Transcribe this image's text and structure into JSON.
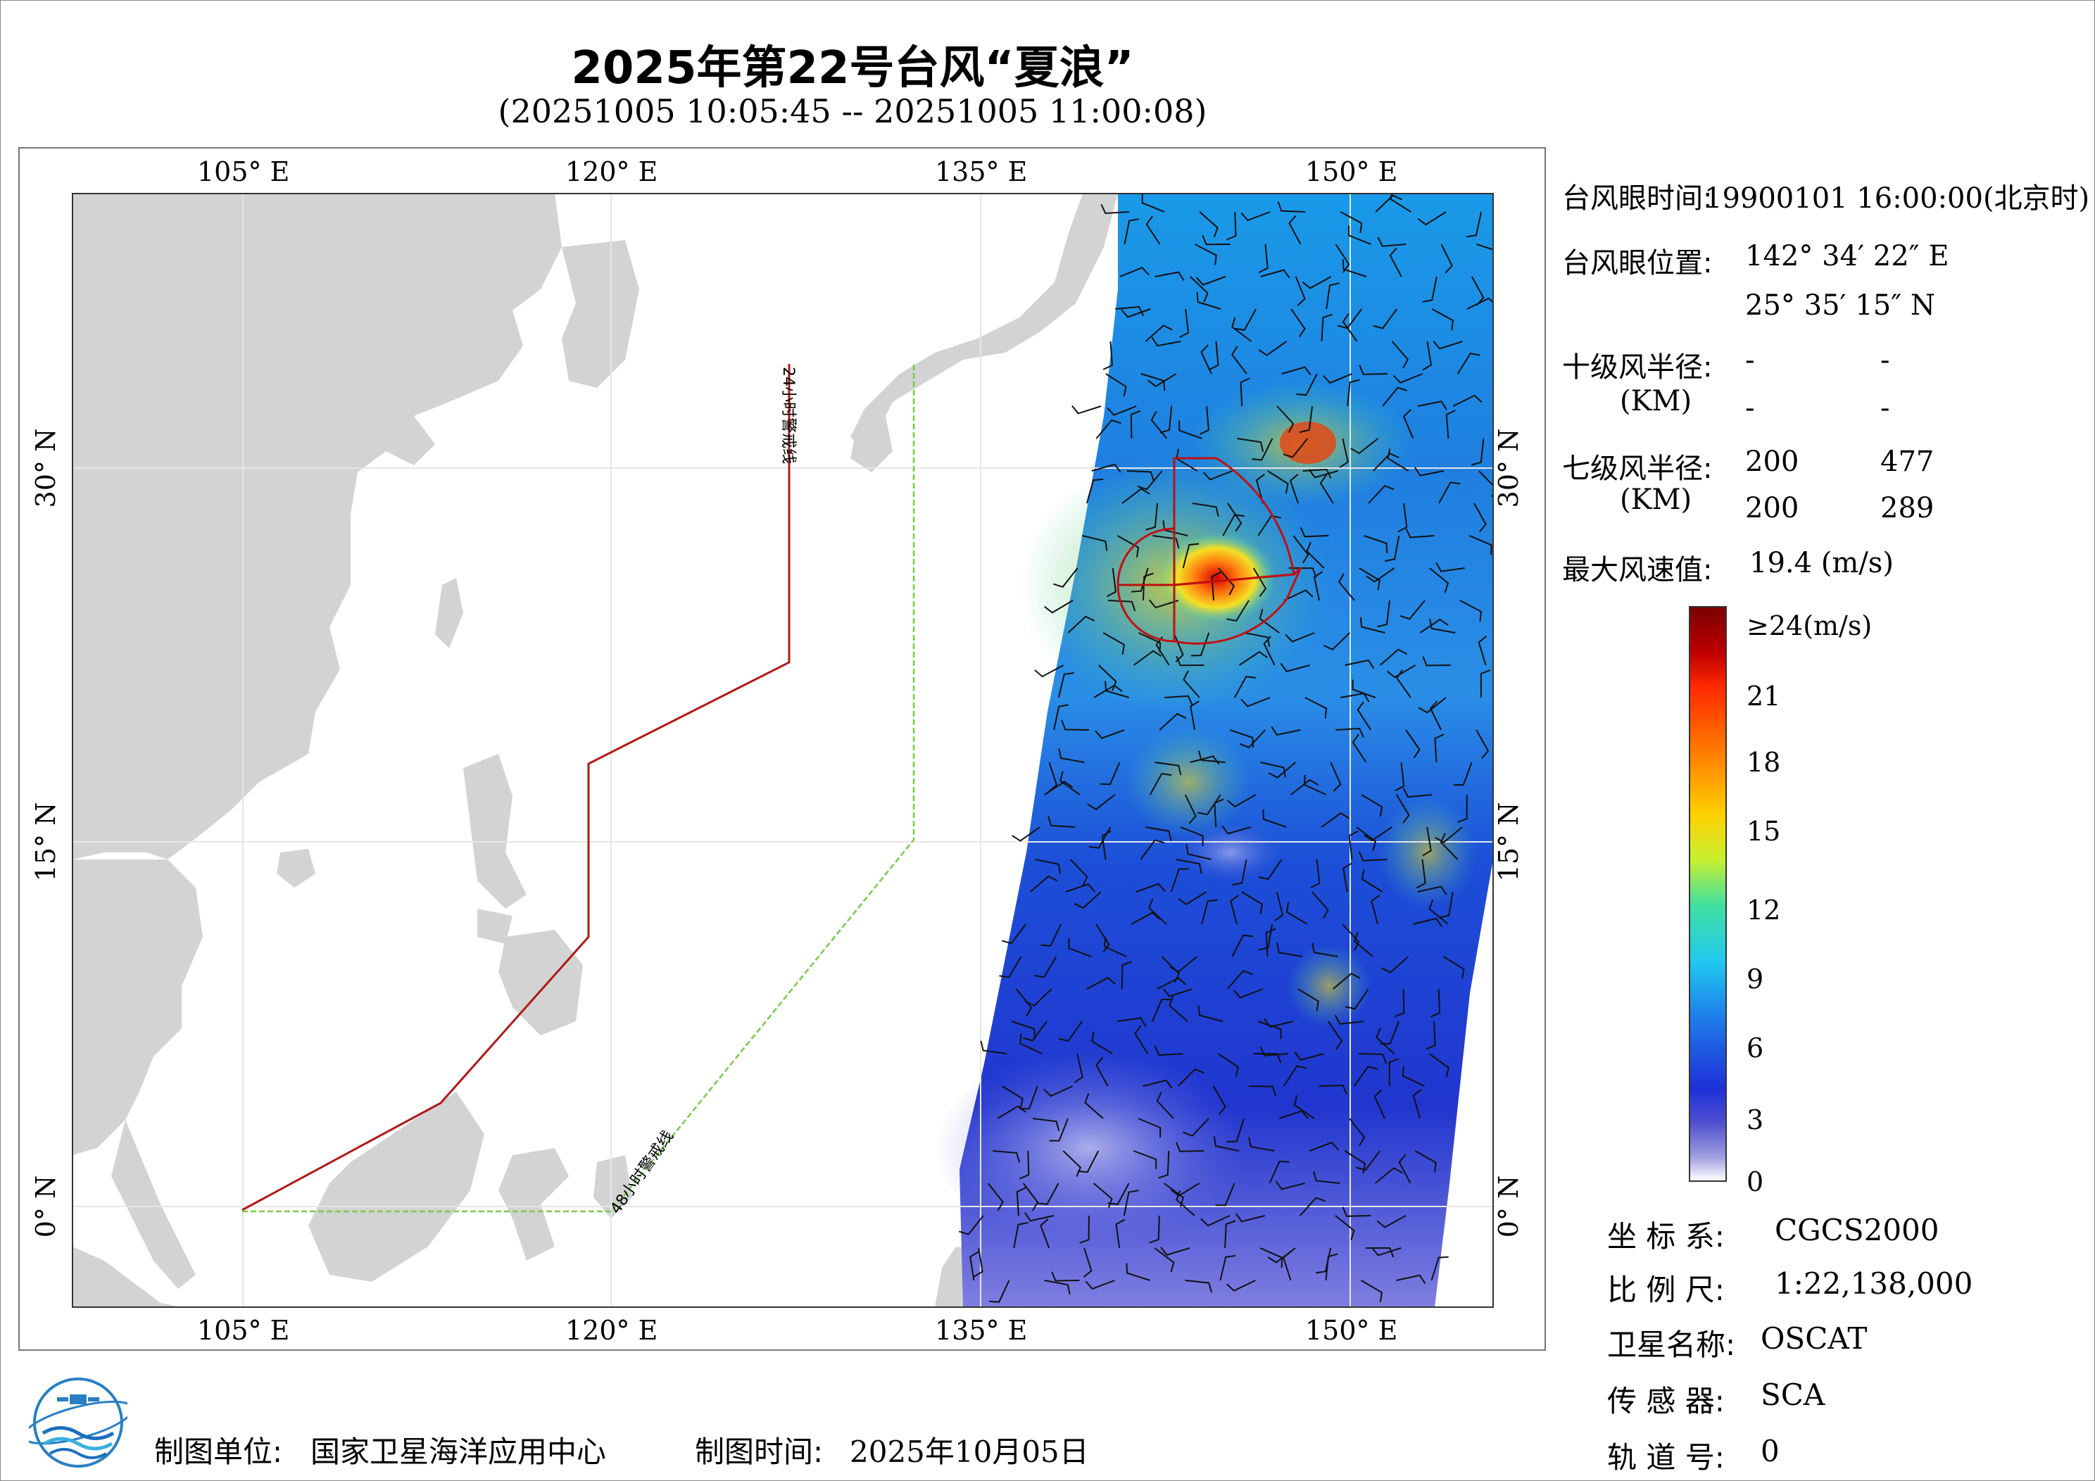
{
  "header": {
    "title": "2025年第22号台风“夏浪”",
    "subtitle": "(20251005 10:05:45 -- 20251005 11:00:08)"
  },
  "map": {
    "lon_labels": [
      "105° E",
      "120° E",
      "135° E",
      "150° E"
    ],
    "lat_labels": [
      "30° N",
      "15° N",
      "0° N"
    ],
    "warning_line_24h": "24小时警戒线",
    "warning_line_48h": "48小时警戒线",
    "colors": {
      "land": "#d3d3d3",
      "ocean": "#ffffff",
      "line_24h": "#b01818",
      "line_48h": "#7bc94f"
    }
  },
  "typhoon_info": {
    "eye_time_label": "台风眼时间:",
    "eye_time_value": "19900101 16:00:00(北京时)",
    "eye_position_label": "台风眼位置:",
    "eye_lon": "142° 34′ 22″ E",
    "eye_lat": "25° 35′ 15″ N",
    "r10_label": "十级风半径:",
    "r10_unit": "(KM)",
    "r10_values": [
      "-",
      "-",
      "-",
      "-"
    ],
    "r7_label": "七级风半径:",
    "r7_unit": "(KM)",
    "r7_values": [
      "200",
      "477",
      "200",
      "289"
    ],
    "max_wind_label": "最大风速值:",
    "max_wind_value": "19.4  (m/s)"
  },
  "colorbar": {
    "ticks": [
      "≥24(m/s)",
      "21",
      "18",
      "15",
      "12",
      "9",
      "6",
      "3",
      "0"
    ],
    "values": [
      24,
      21,
      18,
      15,
      12,
      9,
      6,
      3,
      0
    ]
  },
  "meta": {
    "crs_label": "坐 标 系:",
    "crs_value": "CGCS2000",
    "scale_label": "比 例 尺:",
    "scale_value": "1:22,138,000",
    "satellite_label": "卫星名称:",
    "satellite_value": "OSCAT",
    "sensor_label": "传 感 器:",
    "sensor_value": "SCA",
    "orbit_label": "轨 道 号:",
    "orbit_value": "0"
  },
  "footer": {
    "producer_label": "制图单位:",
    "producer_value": "国家卫星海洋应用中心",
    "date_label": "制图时间:",
    "date_value": "2025年10月05日"
  }
}
